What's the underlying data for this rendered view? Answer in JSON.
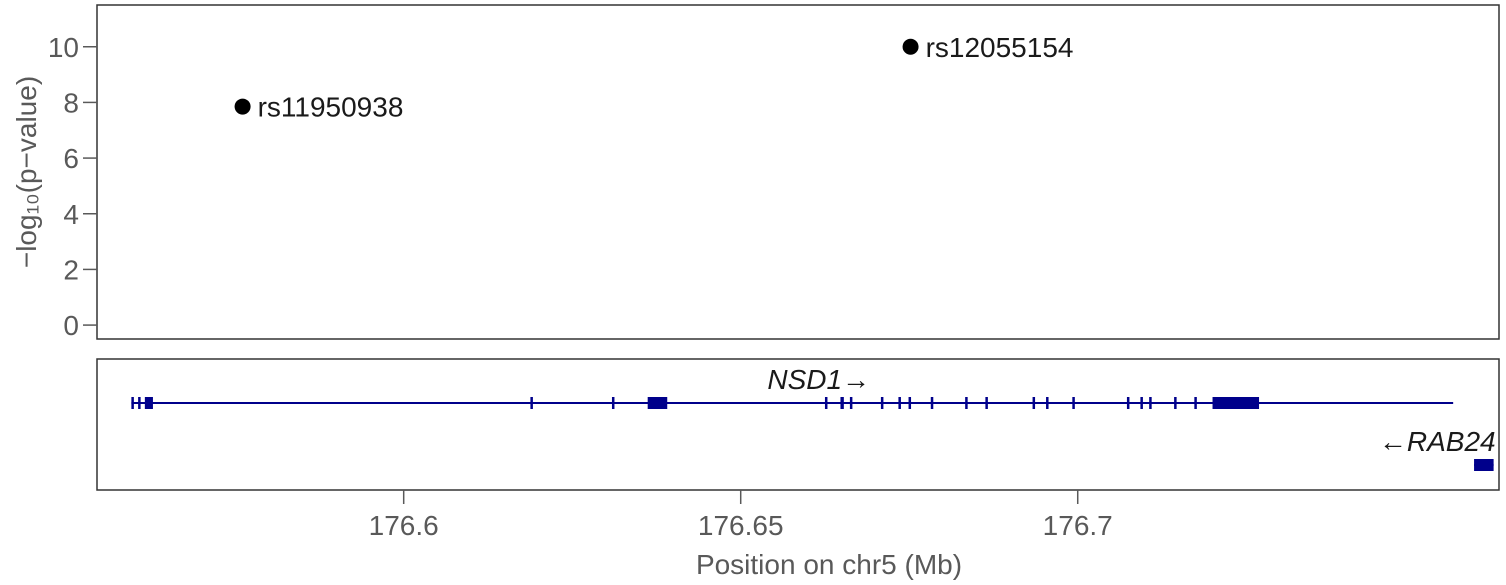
{
  "chart_data": [
    {
      "type": "scatter",
      "title": "",
      "xlabel": "",
      "ylabel": "−log₁₀(p−value)",
      "xlim": [
        176.5545,
        176.7625
      ],
      "ylim": [
        -0.5,
        11.5
      ],
      "yticks": [
        0,
        2,
        4,
        6,
        8,
        10
      ],
      "yticklabels": [
        "0",
        "2",
        "4",
        "6",
        "8",
        "10"
      ],
      "grid": false,
      "points": [
        {
          "label": "rs11950938",
          "x": 176.5761,
          "y": 7.85
        },
        {
          "label": "rs12055154",
          "x": 176.6752,
          "y": 10.0
        }
      ],
      "point_color": "#000000"
    },
    {
      "type": "gene-track",
      "xlabel": "Position on chr5 (Mb)",
      "xlim": [
        176.5545,
        176.7625
      ],
      "xticks": [
        176.6,
        176.65,
        176.7
      ],
      "xticklabels": [
        "176.6",
        "176.65",
        "176.7"
      ],
      "gene_color": "#00008b",
      "genes": [
        {
          "name": "NSD1",
          "strand_label": "→",
          "row": 0,
          "start": 176.5596,
          "end": 176.7557,
          "exons": [
            [
              176.5596,
              176.5599
            ],
            [
              176.5606,
              176.5608
            ],
            [
              176.5616,
              176.5628
            ],
            [
              176.6188,
              176.6191
            ],
            [
              176.6309,
              176.6312
            ],
            [
              176.6362,
              176.6391
            ],
            [
              176.6625,
              176.6628
            ],
            [
              176.6648,
              176.6653
            ],
            [
              176.6662,
              176.6665
            ],
            [
              176.6708,
              176.6711
            ],
            [
              176.6734,
              176.6737
            ],
            [
              176.6749,
              176.6752
            ],
            [
              176.6782,
              176.6785
            ],
            [
              176.6833,
              176.6836
            ],
            [
              176.6863,
              176.6866
            ],
            [
              176.6933,
              176.6936
            ],
            [
              176.6953,
              176.6956
            ],
            [
              176.6992,
              176.6995
            ],
            [
              176.7073,
              176.7076
            ],
            [
              176.7093,
              176.7096
            ],
            [
              176.7106,
              176.7109
            ],
            [
              176.7143,
              176.7146
            ],
            [
              176.7173,
              176.7176
            ],
            [
              176.72,
              176.7269
            ]
          ]
        },
        {
          "name": "RAB24",
          "strand_label": "←",
          "row": 1,
          "start": 176.7588,
          "end": 176.7617,
          "exons": [
            [
              176.7588,
              176.7617
            ]
          ]
        }
      ]
    }
  ]
}
